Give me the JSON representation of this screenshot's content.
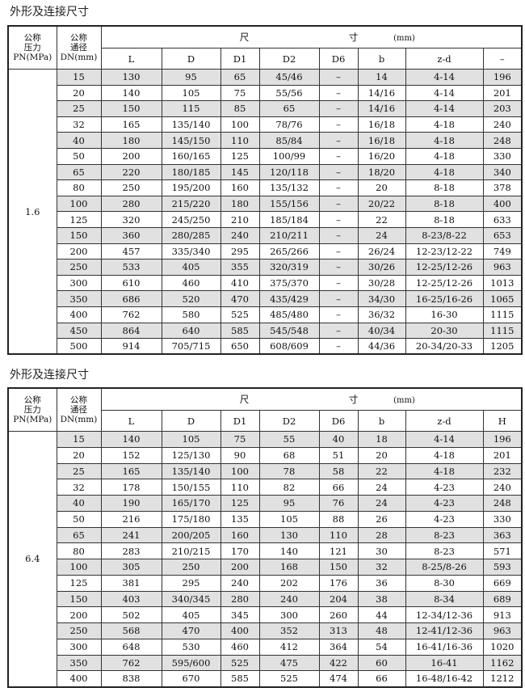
{
  "tables": [
    {
      "title": "外形及连接尺寸",
      "pn_header": "公称\n压力\nPN(MPa)",
      "dn_header": "公称\n通径\nDN(mm)",
      "dim_header": {
        "chi1": "尺",
        "chi2": "寸",
        "unit": "(mm)"
      },
      "columns": [
        "L",
        "D",
        "D1",
        "D2",
        "D6",
        "b",
        "z-d",
        "–"
      ],
      "pn": "1.6",
      "rows": [
        [
          "15",
          "130",
          "95",
          "65",
          "45/46",
          "–",
          "14",
          "4-14",
          "196"
        ],
        [
          "20",
          "140",
          "105",
          "75",
          "55/56",
          "–",
          "14/16",
          "4-14",
          "201"
        ],
        [
          "25",
          "150",
          "115",
          "85",
          "65",
          "–",
          "14/16",
          "4-14",
          "203"
        ],
        [
          "32",
          "165",
          "135/140",
          "100",
          "78/76",
          "–",
          "16/18",
          "4-18",
          "240"
        ],
        [
          "40",
          "180",
          "145/150",
          "110",
          "85/84",
          "–",
          "16/18",
          "4-18",
          "248"
        ],
        [
          "50",
          "200",
          "160/165",
          "125",
          "100/99",
          "–",
          "16/20",
          "4-18",
          "330"
        ],
        [
          "65",
          "220",
          "180/185",
          "145",
          "120/118",
          "–",
          "18/20",
          "4-18",
          "340"
        ],
        [
          "80",
          "250",
          "195/200",
          "160",
          "135/132",
          "–",
          "20",
          "8-18",
          "378"
        ],
        [
          "100",
          "280",
          "215/220",
          "180",
          "155/156",
          "–",
          "20/22",
          "8-18",
          "400"
        ],
        [
          "125",
          "320",
          "245/250",
          "210",
          "185/184",
          "–",
          "22",
          "8-18",
          "633"
        ],
        [
          "150",
          "360",
          "280/285",
          "240",
          "210/211",
          "–",
          "24",
          "8-23/8-22",
          "653"
        ],
        [
          "200",
          "457",
          "335/340",
          "295",
          "265/266",
          "–",
          "26/24",
          "12-23/12-22",
          "749"
        ],
        [
          "250",
          "533",
          "405",
          "355",
          "320/319",
          "–",
          "30/26",
          "12-25/12-26",
          "963"
        ],
        [
          "300",
          "610",
          "460",
          "410",
          "375/370",
          "–",
          "30/28",
          "12-25/12-26",
          "1013"
        ],
        [
          "350",
          "686",
          "520",
          "470",
          "435/429",
          "–",
          "34/30",
          "16-25/16-26",
          "1065"
        ],
        [
          "400",
          "762",
          "580",
          "525",
          "485/480",
          "–",
          "36/32",
          "16-30",
          "1115"
        ],
        [
          "450",
          "864",
          "640",
          "585",
          "545/548",
          "–",
          "40/34",
          "20-30",
          "1115"
        ],
        [
          "500",
          "914",
          "705/715",
          "650",
          "608/609",
          "–",
          "44/36",
          "20-34/20-33",
          "1205"
        ]
      ]
    },
    {
      "title": "外形及连接尺寸",
      "pn_header": "公称\n压力\nPN(MPa)",
      "dn_header": "公称\n通径\nDN(mm)",
      "dim_header": {
        "chi1": "尺",
        "chi2": "寸",
        "unit": "(mm)"
      },
      "columns": [
        "L",
        "D",
        "D1",
        "D2",
        "D6",
        "b",
        "z-d",
        "H"
      ],
      "pn": "6.4",
      "rows": [
        [
          "15",
          "140",
          "105",
          "75",
          "55",
          "40",
          "18",
          "4-14",
          "196"
        ],
        [
          "20",
          "152",
          "125/130",
          "90",
          "68",
          "51",
          "20",
          "4-18",
          "201"
        ],
        [
          "25",
          "165",
          "135/140",
          "100",
          "78",
          "58",
          "22",
          "4-18",
          "232"
        ],
        [
          "32",
          "178",
          "150/155",
          "110",
          "82",
          "66",
          "24",
          "4-23",
          "240"
        ],
        [
          "40",
          "190",
          "165/170",
          "125",
          "95",
          "76",
          "24",
          "4-23",
          "248"
        ],
        [
          "50",
          "216",
          "175/180",
          "135",
          "105",
          "88",
          "26",
          "4-23",
          "330"
        ],
        [
          "65",
          "241",
          "200/205",
          "160",
          "130",
          "110",
          "28",
          "8-23",
          "363"
        ],
        [
          "80",
          "283",
          "210/215",
          "170",
          "140",
          "121",
          "30",
          "8-23",
          "571"
        ],
        [
          "100",
          "305",
          "250",
          "200",
          "168",
          "150",
          "32",
          "8-25/8-26",
          "593"
        ],
        [
          "125",
          "381",
          "295",
          "240",
          "202",
          "176",
          "36",
          "8-30",
          "669"
        ],
        [
          "150",
          "403",
          "340/345",
          "280",
          "240",
          "204",
          "38",
          "8-34",
          "689"
        ],
        [
          "200",
          "502",
          "405",
          "345",
          "300",
          "260",
          "44",
          "12-34/12-36",
          "913"
        ],
        [
          "250",
          "568",
          "470",
          "400",
          "352",
          "313",
          "48",
          "12-41/12-36",
          "963"
        ],
        [
          "300",
          "648",
          "530",
          "460",
          "412",
          "364",
          "54",
          "16-41/16-36",
          "1020"
        ],
        [
          "350",
          "762",
          "595/600",
          "525",
          "475",
          "422",
          "60",
          "16-41",
          "1162"
        ],
        [
          "400",
          "838",
          "670",
          "585",
          "525",
          "474",
          "66",
          "16-48/16-42",
          "1212"
        ]
      ]
    }
  ]
}
